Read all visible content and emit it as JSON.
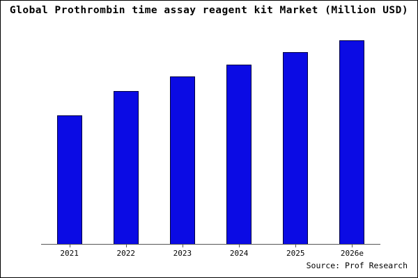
{
  "title": "Global Prothrombin time assay reagent kit Market (Million USD)",
  "source": "Source: Prof Research",
  "colors": {
    "bar_fill": "#0b0be4",
    "bar_border": "#000040",
    "axis": "#555555",
    "background": "#ffffff",
    "frame_border": "#000000"
  },
  "chart_data": {
    "type": "bar",
    "categories": [
      "2021",
      "2022",
      "2023",
      "2024",
      "2025",
      "2026e"
    ],
    "values": [
      63,
      75,
      82,
      88,
      94,
      100
    ],
    "title": "Global Prothrombin time assay reagent kit Market (Million USD)",
    "xlabel": "",
    "ylabel": "",
    "ylim": [
      0,
      105
    ],
    "grid": false,
    "legend": false,
    "annotation": "Source: Prof Research"
  }
}
